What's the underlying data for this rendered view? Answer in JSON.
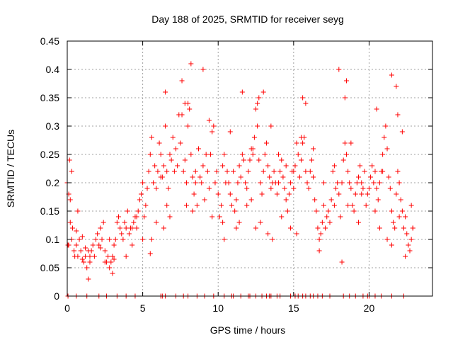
{
  "chart_data": {
    "type": "scatter",
    "title": "Day 188 of 2025, SRMTID for receiver seyg",
    "xlabel": "GPS time / hours",
    "ylabel": "SRMTID / TECUs",
    "xlim": [
      0,
      24.2
    ],
    "ylim": [
      0,
      0.45
    ],
    "xticks": [
      0,
      5,
      10,
      15,
      20
    ],
    "xtick_labels": [
      "0",
      "5",
      "10",
      "15",
      "20"
    ],
    "yticks": [
      0,
      0.05,
      0.1,
      0.15,
      0.2,
      0.25,
      0.3,
      0.35,
      0.4,
      0.45
    ],
    "ytick_labels": [
      "0",
      "0.05",
      "0.1",
      "0.15",
      "0.2",
      "0.25",
      "0.3",
      "0.35",
      "0.4",
      "0.45"
    ],
    "grid": true,
    "marker": "+",
    "color": "#ff0000",
    "series": [
      {
        "name": "SRMTID",
        "x": [
          0.0,
          0.1,
          0.15,
          0.2,
          0.3,
          0.35,
          0.45,
          0.5,
          0.6,
          0.7,
          0.8,
          0.9,
          1.0,
          1.1,
          1.2,
          1.3,
          1.4,
          1.5,
          1.6,
          1.7,
          1.8,
          1.9,
          2.0,
          2.1,
          2.2,
          2.3,
          2.4,
          2.5,
          2.6,
          2.7,
          2.8,
          2.9,
          3.0,
          3.1,
          3.2,
          3.3,
          3.4,
          3.5,
          3.6,
          3.7,
          3.8,
          3.9,
          4.0,
          4.1,
          4.2,
          4.3,
          4.4,
          4.5,
          4.6,
          4.7,
          4.8,
          4.9,
          5.0,
          5.1,
          5.2,
          5.3,
          5.4,
          5.5,
          5.6,
          5.7,
          5.8,
          5.9,
          6.0,
          6.1,
          6.2,
          6.3,
          6.4,
          6.5,
          6.6,
          6.7,
          6.8,
          6.9,
          7.0,
          7.1,
          7.2,
          7.3,
          7.4,
          7.5,
          7.6,
          7.7,
          7.8,
          7.9,
          8.0,
          8.1,
          8.2,
          8.3,
          8.4,
          8.5,
          8.6,
          8.7,
          8.8,
          8.9,
          9.0,
          9.1,
          9.2,
          9.3,
          9.4,
          9.5,
          9.6,
          9.7,
          9.8,
          9.9,
          10.0,
          10.1,
          10.2,
          10.3,
          10.4,
          10.5,
          10.6,
          10.7,
          10.8,
          10.9,
          11.0,
          11.1,
          11.2,
          11.3,
          11.4,
          11.5,
          11.6,
          11.7,
          11.8,
          11.9,
          12.0,
          12.1,
          12.2,
          12.3,
          12.4,
          12.5,
          12.6,
          12.7,
          12.8,
          12.9,
          13.0,
          13.1,
          13.2,
          13.3,
          13.4,
          13.5,
          13.6,
          13.7,
          13.8,
          13.9,
          14.0,
          14.1,
          14.2,
          14.3,
          14.4,
          14.5,
          14.6,
          14.7,
          14.8,
          14.9,
          15.0,
          15.1,
          15.2,
          15.3,
          15.4,
          15.5,
          15.6,
          15.7,
          15.8,
          15.9,
          16.0,
          16.1,
          16.2,
          16.3,
          16.4,
          16.5,
          16.6,
          16.7,
          16.8,
          16.9,
          17.0,
          17.1,
          17.2,
          17.3,
          17.4,
          17.5,
          17.6,
          17.7,
          17.8,
          17.9,
          18.0,
          18.1,
          18.2,
          18.3,
          18.4,
          18.5,
          18.6,
          18.7,
          18.8,
          18.9,
          19.0,
          19.1,
          19.2,
          19.3,
          19.4,
          19.5,
          19.6,
          19.7,
          19.8,
          19.9,
          20.0,
          20.1,
          20.2,
          20.3,
          20.4,
          20.5,
          20.6,
          20.7,
          20.8,
          20.9,
          21.0,
          21.1,
          21.2,
          21.3,
          21.4,
          21.5,
          21.6,
          21.7,
          21.8,
          21.9,
          22.0,
          22.1,
          22.2,
          22.3,
          22.4,
          22.5,
          22.6,
          22.7,
          22.8,
          22.9,
          0.05,
          0.2,
          0.3,
          0.7,
          1.2,
          1.4,
          1.5,
          2.5,
          3.0,
          3.9,
          5.0,
          5.5,
          5.6,
          5.9,
          6.5,
          6.8,
          7.6,
          7.8,
          8.0,
          8.2,
          9.0,
          9.4,
          10.8,
          11.6,
          12.2,
          12.3,
          12.6,
          12.7,
          13.0,
          13.5,
          14.0,
          14.5,
          15.0,
          15.5,
          15.6,
          15.8,
          16.3,
          17.0,
          18.0,
          18.4,
          18.5,
          18.8,
          19.5,
          20.5,
          20.9,
          21.5,
          21.8,
          21.9,
          22.2,
          22.8,
          0.1,
          0.6,
          1.0,
          2.2,
          2.8,
          3.1,
          4.3,
          4.6,
          5.3,
          6.2,
          6.4,
          6.6,
          7.9,
          8.3,
          8.5,
          9.6,
          10.3,
          10.4,
          11.2,
          11.4,
          11.9,
          12.5,
          12.8,
          13.3,
          13.6,
          14.2,
          14.8,
          15.2,
          16.7,
          17.7,
          18.2,
          18.6,
          19.3,
          20.4,
          20.7,
          21.2,
          21.5,
          22.0,
          22.4,
          22.9
        ],
        "y": [
          0.2,
          0.18,
          0.24,
          0.13,
          0.1,
          0.12,
          0.08,
          0.07,
          0.09,
          0.07,
          0.1,
          0.08,
          0.065,
          0.06,
          0.07,
          0.05,
          0.03,
          0.06,
          0.08,
          0.09,
          0.07,
          0.1,
          0.11,
          0.09,
          0.12,
          0.1,
          0.13,
          0.08,
          0.06,
          0.07,
          0.05,
          0.06,
          0.07,
          0.09,
          0.1,
          0.13,
          0.14,
          0.12,
          0.11,
          0.1,
          0.13,
          0.12,
          0.15,
          0.11,
          0.12,
          0.09,
          0.13,
          0.14,
          0.12,
          0.15,
          0.17,
          0.18,
          0.2,
          0.14,
          0.16,
          0.19,
          0.22,
          0.25,
          0.28,
          0.2,
          0.23,
          0.19,
          0.22,
          0.27,
          0.25,
          0.21,
          0.23,
          0.3,
          0.22,
          0.19,
          0.14,
          0.24,
          0.28,
          0.22,
          0.26,
          0.23,
          0.32,
          0.27,
          0.38,
          0.22,
          0.24,
          0.2,
          0.3,
          0.33,
          0.25,
          0.21,
          0.18,
          0.22,
          0.16,
          0.26,
          0.21,
          0.2,
          0.23,
          0.17,
          0.25,
          0.22,
          0.19,
          0.25,
          0.29,
          0.3,
          0.2,
          0.22,
          0.18,
          0.14,
          0.16,
          0.23,
          0.25,
          0.2,
          0.22,
          0.2,
          0.18,
          0.16,
          0.22,
          0.15,
          0.17,
          0.2,
          0.23,
          0.21,
          0.25,
          0.24,
          0.2,
          0.19,
          0.22,
          0.24,
          0.17,
          0.25,
          0.28,
          0.33,
          0.3,
          0.24,
          0.2,
          0.18,
          0.22,
          0.25,
          0.27,
          0.23,
          0.21,
          0.19,
          0.2,
          0.22,
          0.2,
          0.18,
          0.2,
          0.22,
          0.24,
          0.21,
          0.19,
          0.17,
          0.15,
          0.18,
          0.2,
          0.22,
          0.19,
          0.23,
          0.27,
          0.25,
          0.21,
          0.24,
          0.27,
          0.28,
          0.22,
          0.2,
          0.19,
          0.22,
          0.24,
          0.21,
          0.17,
          0.15,
          0.12,
          0.1,
          0.11,
          0.13,
          0.16,
          0.12,
          0.14,
          0.15,
          0.13,
          0.17,
          0.22,
          0.23,
          0.19,
          0.2,
          0.18,
          0.14,
          0.2,
          0.24,
          0.27,
          0.25,
          0.22,
          0.2,
          0.19,
          0.16,
          0.15,
          0.18,
          0.2,
          0.21,
          0.23,
          0.2,
          0.19,
          0.22,
          0.16,
          0.18,
          0.19,
          0.21,
          0.23,
          0.2,
          0.22,
          0.19,
          0.17,
          0.2,
          0.22,
          0.25,
          0.28,
          0.3,
          0.26,
          0.21,
          0.19,
          0.15,
          0.13,
          0.12,
          0.18,
          0.22,
          0.2,
          0.17,
          0.15,
          0.12,
          0.14,
          0.11,
          0.09,
          0.08,
          0.1,
          0.12,
          0.09,
          0.17,
          0.22,
          0.15,
          0.085,
          0.08,
          0.07,
          0.06,
          0.04,
          0.07,
          0.1,
          0.075,
          0.1,
          0.13,
          0.36,
          0.25,
          0.32,
          0.34,
          0.34,
          0.41,
          0.4,
          0.31,
          0.29,
          0.36,
          0.26,
          0.26,
          0.34,
          0.35,
          0.36,
          0.3,
          0.25,
          0.23,
          0.22,
          0.28,
          0.35,
          0.34,
          0.26,
          0.2,
          0.4,
          0.35,
          0.38,
          0.27,
          0.18,
          0.33,
          0.22,
          0.39,
          0.37,
          0.32,
          0.29,
          0.16,
          0.09,
          0.115,
          0.105,
          0.085,
          0.1,
          0.065,
          0.12,
          0.14,
          0.19,
          0.21,
          0.12,
          0.16,
          0.16,
          0.15,
          0.2,
          0.14,
          0.13,
          0.1,
          0.12,
          0.13,
          0.16,
          0.12,
          0.13,
          0.11,
          0.1,
          0.14,
          0.12,
          0.11,
          0.08,
          0.16,
          0.06,
          0.16,
          0.13,
          0.15,
          0.12,
          0.1,
          0.09,
          0.14,
          0.07,
          0.12
        ]
      }
    ],
    "zero_markers_x": [
      0.05,
      0.6,
      1.3,
      2.1,
      2.6,
      3.3,
      3.9,
      4.5,
      6.2,
      6.3,
      6.5,
      7.2,
      7.7,
      8.0,
      8.6,
      9.1,
      9.7,
      10.4,
      10.9,
      11.0,
      11.5,
      12.0,
      12.1,
      12.5,
      12.9,
      13.2,
      13.4,
      13.5,
      13.9,
      14.1,
      14.8,
      15.1,
      15.3,
      15.6,
      15.8,
      16.1,
      16.3,
      16.6,
      16.9,
      17.4,
      18.3,
      18.7,
      19.1,
      19.6,
      19.9,
      20.0,
      20.4,
      20.8,
      21.5,
      22.3
    ]
  }
}
